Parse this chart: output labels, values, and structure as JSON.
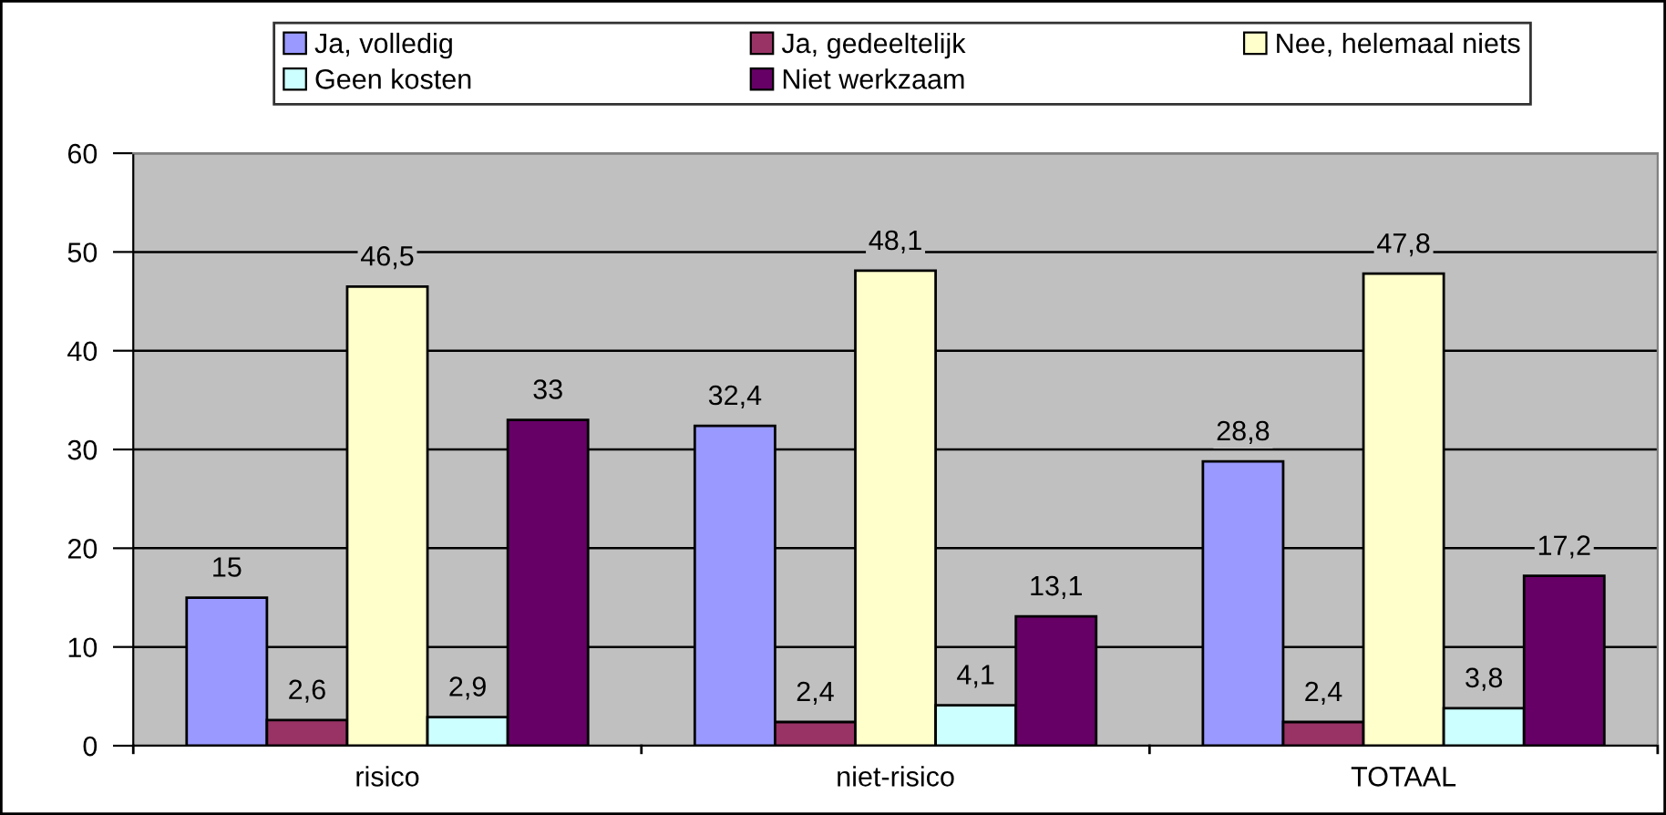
{
  "chart_data": {
    "type": "bar",
    "categories": [
      "risico",
      "niet-risico",
      "TOTAAL"
    ],
    "series": [
      {
        "name": "Ja, volledig",
        "color": "#9999ff",
        "values": [
          15,
          32.4,
          28.8
        ],
        "value_labels": [
          "15",
          "32,4",
          "28,8"
        ]
      },
      {
        "name": "Ja, gedeeltelijk",
        "color": "#993366",
        "values": [
          2.6,
          2.4,
          2.4
        ],
        "value_labels": [
          "2,6",
          "2,4",
          "2,4"
        ]
      },
      {
        "name": "Nee, helemaal niets",
        "color": "#ffffcc",
        "values": [
          46.5,
          48.1,
          47.8
        ],
        "value_labels": [
          "46,5",
          "48,1",
          "47,8"
        ]
      },
      {
        "name": "Geen kosten",
        "color": "#ccffff",
        "values": [
          2.9,
          4.1,
          3.8
        ],
        "value_labels": [
          "2,9",
          "4,1",
          "3,8"
        ]
      },
      {
        "name": "Niet werkzaam",
        "color": "#660066",
        "values": [
          33,
          13.1,
          17.2
        ],
        "value_labels": [
          "33",
          "13,1",
          "17,2"
        ]
      }
    ],
    "ylim": [
      0,
      60
    ],
    "yticks": [
      0,
      10,
      20,
      30,
      40,
      50,
      60
    ],
    "grid": "y",
    "legend": "top"
  }
}
